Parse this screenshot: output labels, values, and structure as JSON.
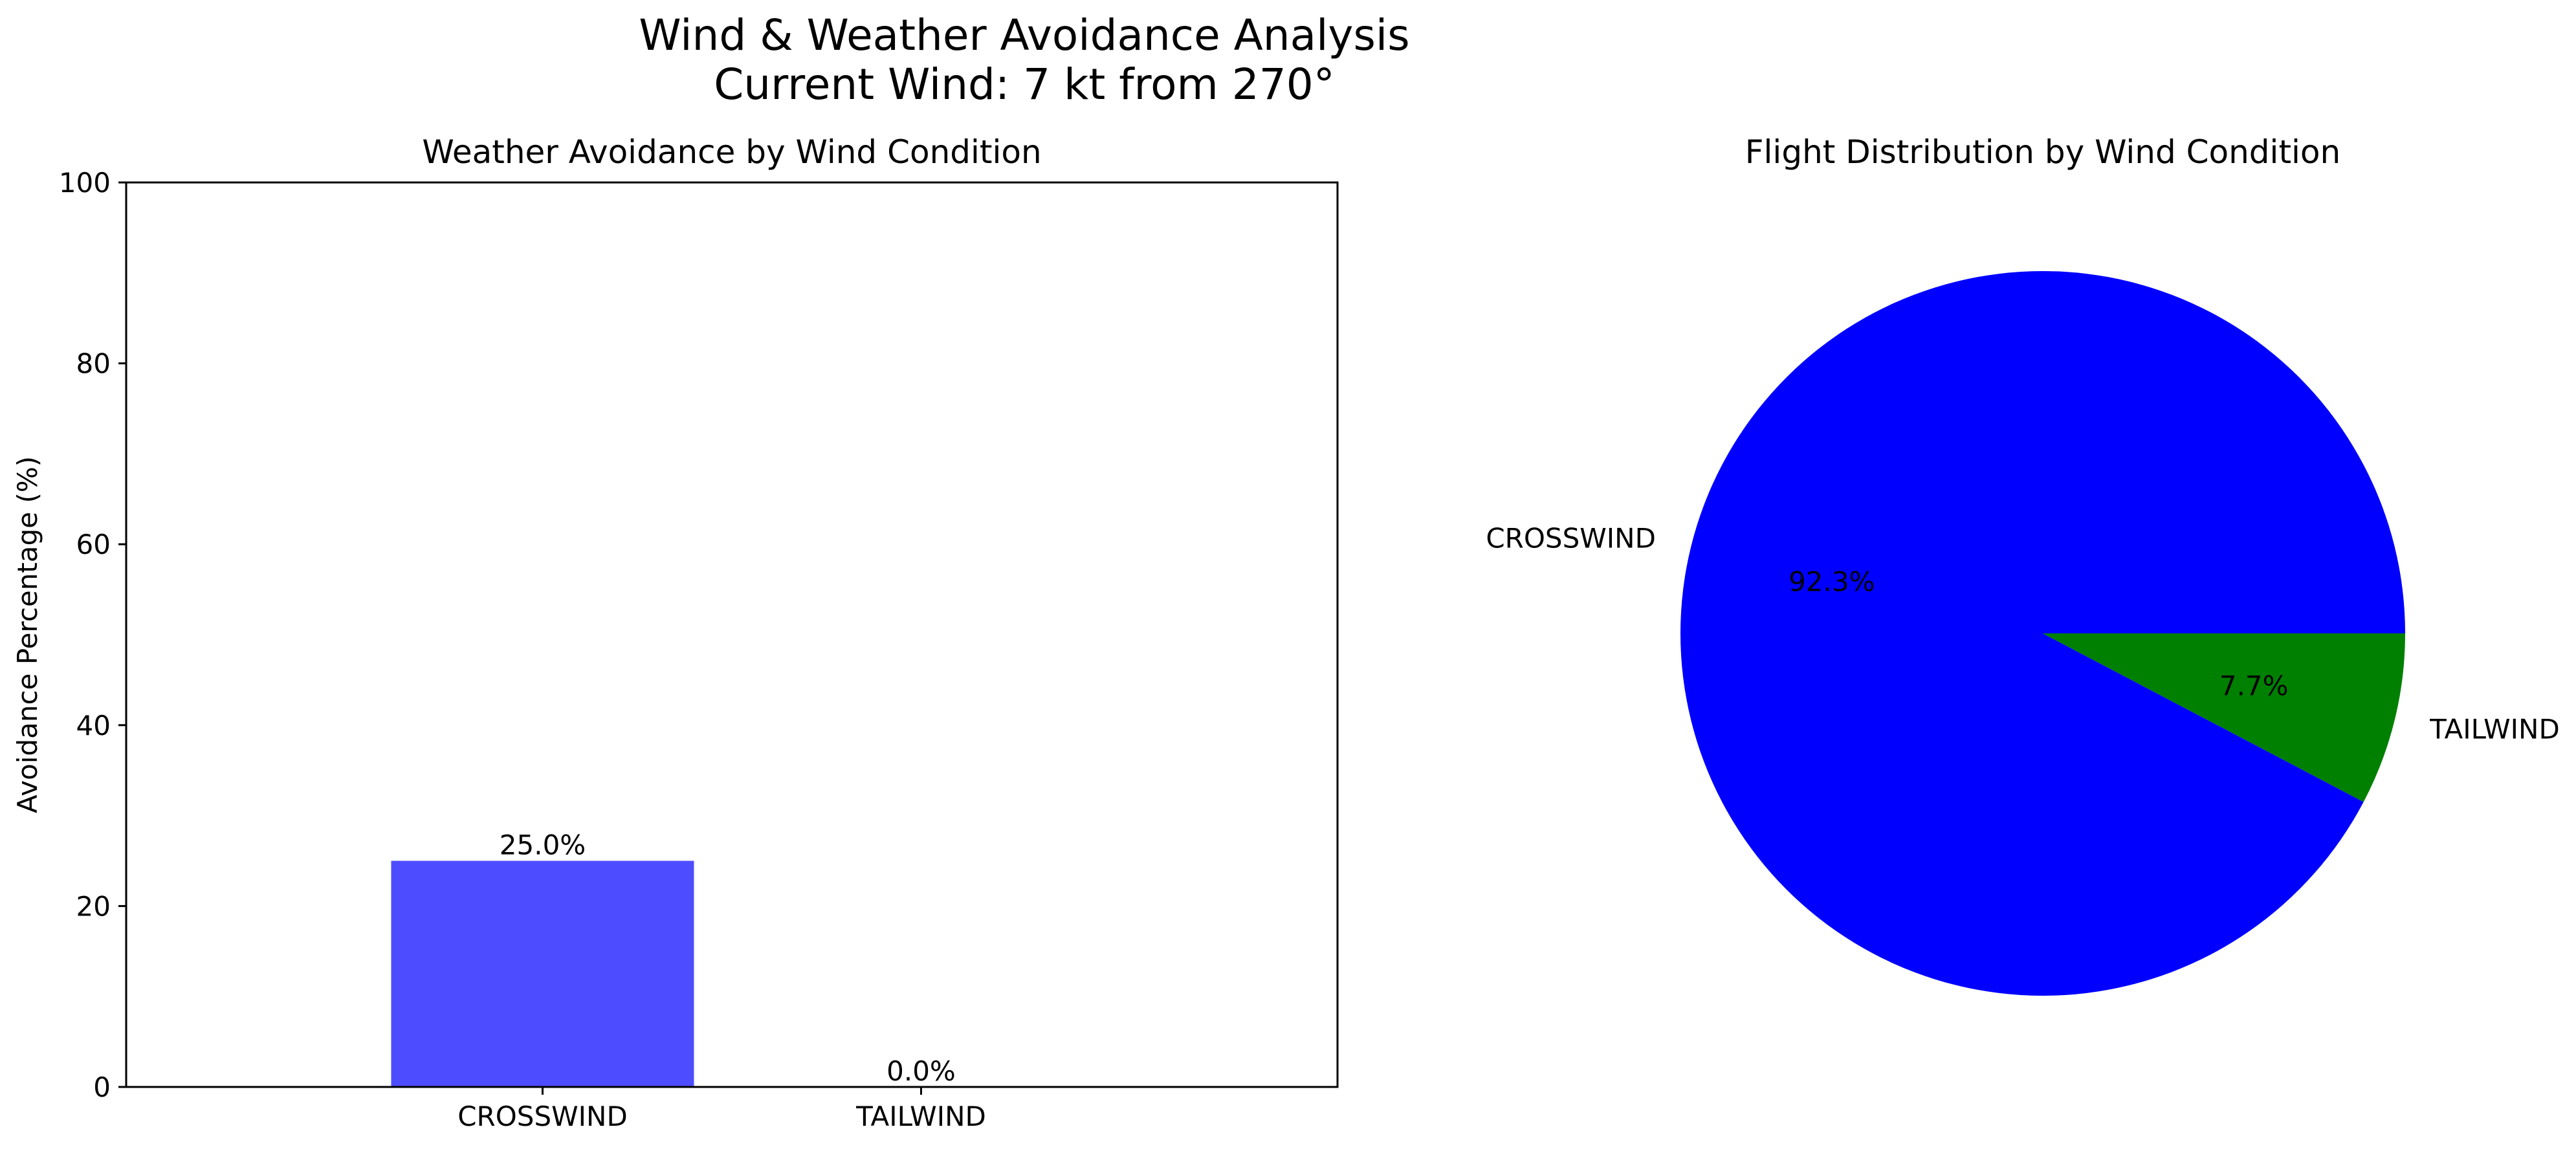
{
  "figure": {
    "title": "Wind & Weather Avoidance Analysis",
    "subtitle": "Current Wind: 7 kt from 270°"
  },
  "chart_data": [
    {
      "type": "bar",
      "title": "Weather Avoidance by Wind Condition",
      "xlabel": "",
      "ylabel": "Avoidance Percentage (%)",
      "categories": [
        "CROSSWIND",
        "TAILWIND"
      ],
      "values": [
        25.0,
        0.0
      ],
      "value_labels": [
        "25.0%",
        "0.0%"
      ],
      "ylim": [
        0,
        100
      ],
      "yticks": [
        0,
        20,
        40,
        60,
        80,
        100
      ],
      "ytick_labels": [
        "0",
        "20",
        "40",
        "60",
        "80",
        "100"
      ],
      "bar_color": "#4d4dff",
      "grid": false
    },
    {
      "type": "pie",
      "title": "Flight Distribution by Wind Condition",
      "labels": [
        "CROSSWIND",
        "TAILWIND"
      ],
      "values": [
        92.3,
        7.7
      ],
      "pct_labels": [
        "92.3%",
        "7.7%"
      ],
      "colors": [
        "#0000ff",
        "#008000"
      ]
    }
  ]
}
